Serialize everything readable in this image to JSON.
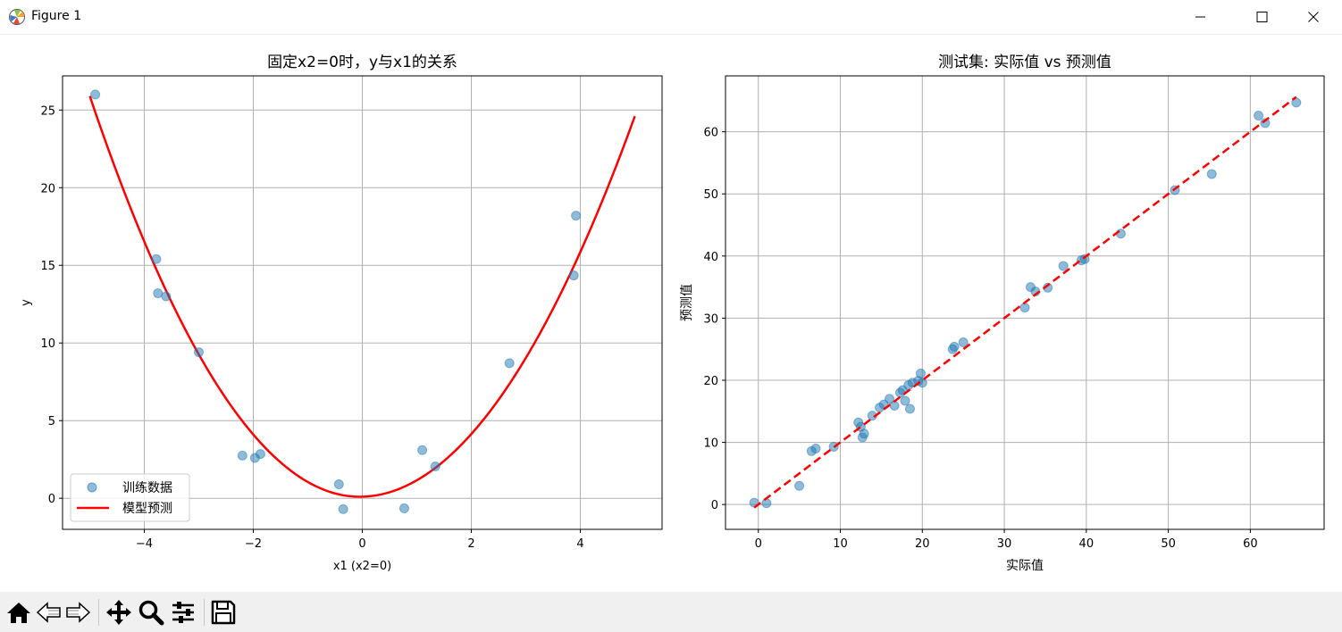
{
  "window": {
    "title": "Figure 1",
    "icons": [
      "matplotlib-logo-icon",
      "minimize-icon",
      "maximize-icon",
      "close-icon"
    ]
  },
  "toolbar": {
    "buttons": [
      "home-icon",
      "back-icon",
      "forward-icon",
      "pan-icon",
      "zoom-icon",
      "configure-subplots-icon",
      "save-icon"
    ]
  },
  "colors": {
    "scatter": "#1f77b4",
    "fit_line": "#ff0000",
    "grid": "#b0b0b0"
  },
  "chart_data": [
    {
      "type": "scatter",
      "title": "固定x2=0时，y与x1的关系",
      "xlabel": "x1 (x2=0)",
      "ylabel": "y",
      "xlim": [
        -5.5,
        5.5
      ],
      "ylim": [
        -2,
        27.2
      ],
      "xticks": [
        -4,
        -2,
        0,
        2,
        4
      ],
      "yticks": [
        0,
        5,
        10,
        15,
        20,
        25
      ],
      "grid": true,
      "legend_position": "lower-left",
      "series": [
        {
          "name": "训练数据",
          "kind": "scatter",
          "points": [
            [
              -4.9,
              26.0
            ],
            [
              -3.78,
              15.4
            ],
            [
              -3.75,
              13.2
            ],
            [
              -3.6,
              13.0
            ],
            [
              -3.0,
              9.4
            ],
            [
              -2.2,
              2.75
            ],
            [
              -1.97,
              2.6
            ],
            [
              -1.87,
              2.85
            ],
            [
              -0.43,
              0.9
            ],
            [
              -0.35,
              -0.7
            ],
            [
              0.77,
              -0.65
            ],
            [
              1.1,
              3.1
            ],
            [
              1.34,
              2.05
            ],
            [
              2.7,
              8.7
            ],
            [
              3.88,
              14.35
            ],
            [
              3.92,
              18.2
            ]
          ]
        },
        {
          "name": "模型预测",
          "kind": "line",
          "x_start": -5,
          "x_end": 5,
          "y_at_start": 25.9,
          "minimum_at": [
            -0.05,
            0.1
          ],
          "y_at_end": 24.6
        }
      ]
    },
    {
      "type": "scatter",
      "title": "测试集: 实际值 vs 预测值",
      "xlabel": "实际值",
      "ylabel": "预测值",
      "xlim": [
        -4,
        69
      ],
      "ylim": [
        -4,
        69
      ],
      "xticks": [
        0,
        10,
        20,
        30,
        40,
        50,
        60
      ],
      "yticks": [
        0,
        10,
        20,
        30,
        40,
        50,
        60
      ],
      "grid": true,
      "series": [
        {
          "kind": "scatter",
          "points": [
            [
              -0.5,
              0.3
            ],
            [
              1.0,
              0.2
            ],
            [
              5.0,
              3.0
            ],
            [
              6.5,
              8.6
            ],
            [
              7.0,
              9.0
            ],
            [
              9.2,
              9.3
            ],
            [
              12.2,
              13.2
            ],
            [
              12.5,
              12.5
            ],
            [
              12.7,
              10.8
            ],
            [
              12.9,
              11.4
            ],
            [
              13.9,
              14.3
            ],
            [
              14.8,
              15.6
            ],
            [
              15.3,
              16.1
            ],
            [
              16.0,
              17.0
            ],
            [
              16.6,
              15.9
            ],
            [
              17.3,
              18.0
            ],
            [
              17.6,
              18.4
            ],
            [
              17.9,
              16.7
            ],
            [
              18.3,
              19.2
            ],
            [
              18.5,
              15.4
            ],
            [
              18.8,
              19.6
            ],
            [
              19.5,
              19.9
            ],
            [
              19.8,
              21.1
            ],
            [
              20.0,
              19.6
            ],
            [
              23.7,
              25.0
            ],
            [
              23.9,
              25.4
            ],
            [
              25.0,
              26.1
            ],
            [
              32.5,
              31.7
            ],
            [
              33.2,
              35.0
            ],
            [
              33.8,
              34.3
            ],
            [
              35.3,
              34.9
            ],
            [
              37.2,
              38.4
            ],
            [
              39.4,
              39.3
            ],
            [
              39.8,
              39.5
            ],
            [
              44.2,
              43.6
            ],
            [
              50.8,
              50.6
            ],
            [
              55.3,
              53.2
            ],
            [
              61.0,
              62.6
            ],
            [
              61.8,
              61.4
            ],
            [
              65.6,
              64.7
            ]
          ]
        },
        {
          "kind": "line",
          "style": "dashed",
          "points": [
            [
              -0.5,
              -0.5
            ],
            [
              65.6,
              65.6
            ]
          ]
        }
      ]
    }
  ]
}
